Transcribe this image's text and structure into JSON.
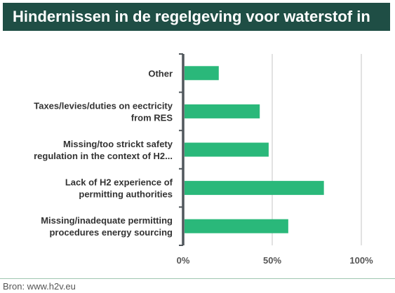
{
  "title": "Hindernissen in de regelgeving voor waterstof in",
  "source": "Bron: www.h2v.eu",
  "colors": {
    "bar": "#2ab87a",
    "title_bg": "#1f4e45",
    "axis": "#50575c",
    "grid": "#d9d9d9",
    "text": "#333333"
  },
  "chart_data": {
    "type": "bar",
    "orientation": "horizontal",
    "categories": [
      [
        "Other"
      ],
      [
        "Taxes/levies/duties on eectricity",
        "from RES"
      ],
      [
        "Missing/too strickt safety",
        "regulation in the context of H2..."
      ],
      [
        "Lack of H2 experience of",
        "permitting authorities"
      ],
      [
        "Missing/inadequate permitting",
        "procedures energy sourcing"
      ]
    ],
    "values": [
      20,
      43,
      48,
      79,
      59
    ],
    "xlim": [
      0,
      100
    ],
    "xticks": [
      0,
      50,
      100
    ],
    "xtick_labels": [
      "0%",
      "50%",
      "100%"
    ],
    "grid": true
  }
}
